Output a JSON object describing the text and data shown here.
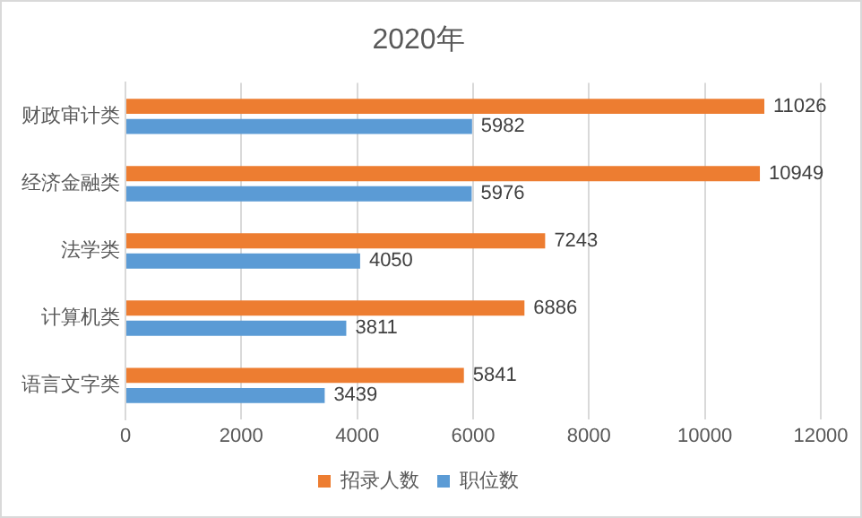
{
  "chart_data": {
    "type": "bar",
    "orientation": "horizontal",
    "title": "2020年",
    "categories": [
      "财政审计类",
      "经济金融类",
      "法学类",
      "计算机类",
      "语言文字类"
    ],
    "series": [
      {
        "name": "招录人数",
        "color": "#ed7d31",
        "values": [
          11026,
          10949,
          7243,
          6886,
          5841
        ]
      },
      {
        "name": "职位数",
        "color": "#5b9bd5",
        "values": [
          5982,
          5976,
          4050,
          3811,
          3439
        ]
      }
    ],
    "xlim": [
      0,
      12000
    ],
    "xticks": [
      0,
      2000,
      4000,
      6000,
      8000,
      10000,
      12000
    ],
    "grid": "x",
    "legend": "bottom",
    "data_labels": true
  }
}
